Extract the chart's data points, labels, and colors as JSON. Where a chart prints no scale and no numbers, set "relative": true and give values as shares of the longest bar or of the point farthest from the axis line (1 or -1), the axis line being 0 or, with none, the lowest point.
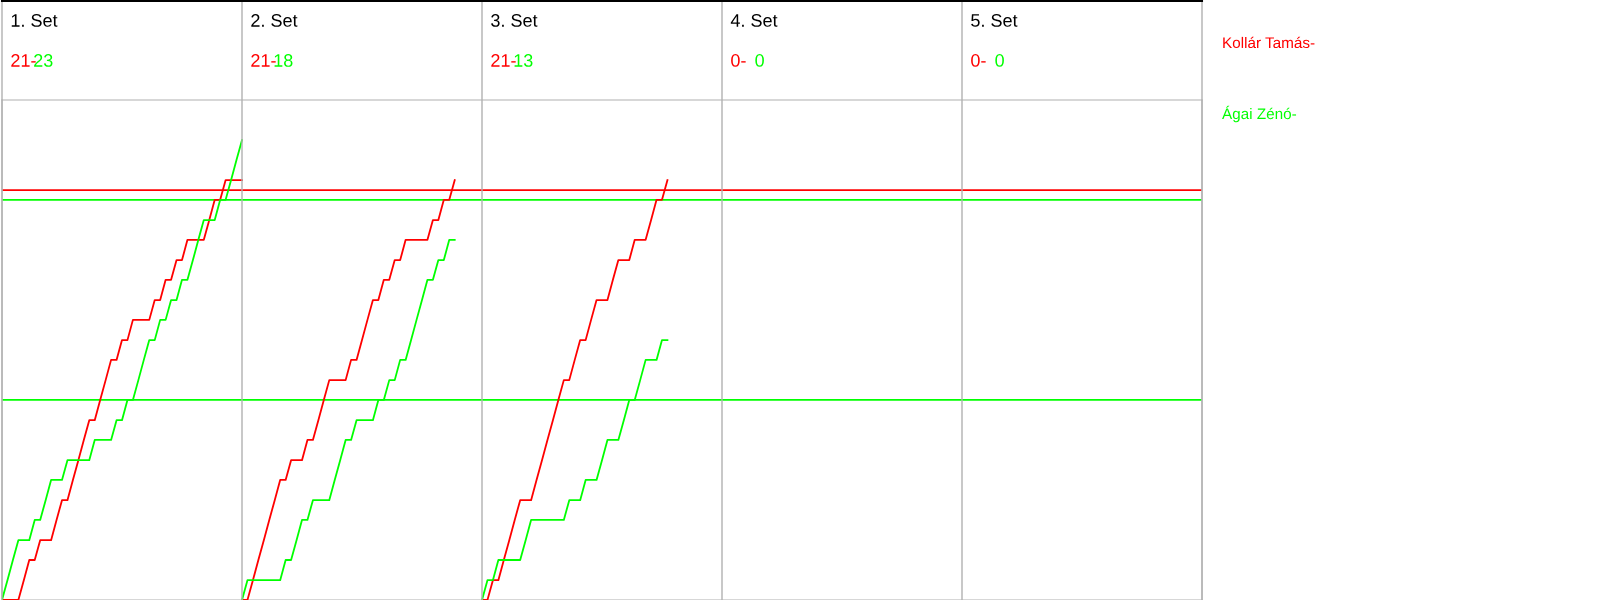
{
  "chart_data": {
    "type": "line",
    "relative": true,
    "marker": "none",
    "line_style": "solid",
    "annotations": [
      "1. Set",
      "21-",
      "23",
      "2. Set",
      "21-",
      "18",
      "3. Set",
      "21-",
      "13",
      "4. Set",
      "0-",
      "0",
      "5. Set",
      "0-",
      "0"
    ],
    "categories": [
      null,
      null,
      null,
      null,
      null,
      null,
      null,
      null,
      null,
      null,
      null,
      null,
      null,
      null,
      null,
      null,
      null,
      null,
      null,
      null,
      null,
      null,
      null,
      null,
      null,
      null,
      null,
      null,
      null,
      null,
      null,
      null,
      null,
      null,
      null,
      null,
      null,
      null,
      null,
      null,
      null,
      null,
      null,
      null,
      null,
      null,
      null,
      null,
      null,
      null,
      null,
      null,
      null,
      null,
      null,
      null,
      null,
      null,
      null,
      null,
      null,
      null,
      null,
      null,
      null,
      null,
      null,
      null,
      null,
      null,
      null,
      null,
      null,
      null,
      null,
      null,
      null,
      null,
      null,
      null,
      null,
      null,
      null,
      null,
      null,
      null,
      null,
      null,
      null,
      null,
      null,
      null,
      null,
      null,
      null,
      null,
      null,
      null,
      null,
      null,
      null,
      null,
      null,
      null,
      null,
      null,
      null,
      null,
      null,
      null,
      null,
      null,
      null,
      null,
      null,
      null,
      null,
      null,
      null,
      null,
      null,
      null,
      null,
      null,
      null,
      null,
      null,
      null,
      null,
      null,
      null,
      null,
      null,
      null,
      null,
      null,
      null,
      null,
      null,
      null,
      null,
      null,
      null,
      null,
      null,
      null,
      null,
      null,
      null,
      null,
      null,
      null,
      null,
      null,
      null,
      null,
      null,
      null,
      null,
      null,
      null,
      null,
      null,
      null,
      null,
      null,
      null,
      null,
      null,
      null,
      null,
      null,
      null,
      null,
      null,
      null,
      null,
      null,
      null,
      null,
      null,
      null,
      null,
      null,
      null,
      null,
      null,
      null,
      null,
      null,
      null,
      null,
      null,
      null,
      null,
      null,
      null,
      null,
      null,
      null,
      null,
      null,
      null,
      null,
      null,
      null,
      null,
      null,
      null,
      null,
      null,
      null,
      null,
      null,
      null,
      null,
      null,
      null,
      null,
      null,
      null
    ],
    "series": [
      {
        "name": "Kollár Tamás-",
        "color": "#ff0000",
        "values": [
          0,
          0,
          0,
          0,
          0.043,
          0.087,
          0.087,
          0.13,
          0.13,
          0.13,
          0.174,
          0.217,
          0.217,
          0.261,
          0.304,
          0.348,
          0.391,
          0.391,
          0.435,
          0.478,
          0.522,
          0.522,
          0.565,
          0.565,
          0.609,
          0.609,
          0.609,
          0.609,
          0.652,
          0.652,
          0.696,
          0.696,
          0.739,
          0.739,
          0.783,
          0.783,
          0.783,
          0.783,
          0.826,
          0.87,
          0.87,
          0.913,
          0.913,
          0.913,
          0.913,
          null,
          null,
          null,
          null,
          null,
          null,
          null,
          null,
          null,
          null,
          null,
          null,
          null,
          null,
          null,
          null,
          null,
          null,
          null,
          null,
          null,
          null,
          null,
          null,
          null,
          null,
          null,
          null,
          null,
          null,
          null,
          null,
          null,
          null,
          null,
          null,
          null,
          null,
          null,
          null,
          null,
          null,
          null,
          null,
          null,
          null,
          null,
          null,
          null,
          null,
          null,
          null,
          null,
          null,
          null,
          null,
          null,
          null,
          null,
          null,
          null,
          null,
          null,
          null,
          null,
          null,
          null,
          null,
          null,
          null,
          null,
          null,
          null,
          null,
          null,
          null,
          null,
          null,
          null,
          null,
          null,
          null,
          null,
          null,
          null,
          null,
          null,
          null,
          null,
          null,
          null,
          null,
          null,
          null,
          null,
          null,
          null,
          null,
          null,
          null,
          null,
          null,
          null,
          null,
          null,
          null,
          null,
          null,
          null,
          null,
          null,
          null,
          null,
          null,
          null,
          null,
          null,
          null,
          null,
          null,
          null,
          null,
          null,
          null,
          null,
          null,
          null,
          null,
          null,
          null,
          null,
          null,
          null,
          null,
          null,
          null,
          null,
          null,
          null,
          null,
          null,
          null,
          null,
          null,
          null,
          null,
          null,
          null,
          null,
          null,
          null,
          null,
          null,
          null,
          null,
          null,
          null,
          null,
          null,
          null,
          null,
          null,
          null,
          null,
          null,
          null,
          null,
          null,
          null,
          null,
          null,
          null,
          null,
          null,
          null,
          null
        ]
      },
      {
        "name": "Ágai Zénó-",
        "color": "#00ff00",
        "values": [
          0,
          0.043,
          0.087,
          0.13,
          0.13,
          0.13,
          0.174,
          0.174,
          0.217,
          0.261,
          0.261,
          0.261,
          0.304,
          0.304,
          0.304,
          0.304,
          0.304,
          0.348,
          0.348,
          0.348,
          0.348,
          0.391,
          0.391,
          0.435,
          0.435,
          0.478,
          0.522,
          0.565,
          0.565,
          0.609,
          0.609,
          0.652,
          0.652,
          0.696,
          0.696,
          0.739,
          0.783,
          0.826,
          0.826,
          0.826,
          0.87,
          0.87,
          0.913,
          0.957,
          1,
          null,
          null,
          null,
          null,
          null,
          null,
          null,
          null,
          null,
          null,
          null,
          null,
          null,
          null,
          null,
          null,
          null,
          null,
          null,
          null,
          null,
          null,
          null,
          null,
          null,
          null,
          null,
          null,
          null,
          null,
          null,
          null,
          null,
          null,
          null,
          null,
          null,
          null,
          null,
          null,
          null,
          null,
          null,
          null,
          null,
          null,
          null,
          null,
          null,
          null,
          null,
          null,
          null,
          null,
          null,
          null,
          null,
          null,
          null,
          null,
          null,
          null,
          null,
          null,
          null,
          null,
          null,
          null,
          null,
          null,
          null,
          null,
          null,
          null,
          null,
          null,
          null,
          null,
          null,
          null,
          null,
          null,
          null,
          null,
          null,
          null,
          null,
          null,
          null,
          null,
          null,
          null,
          null,
          null,
          null,
          null,
          null,
          null,
          null,
          null,
          null,
          null,
          null,
          null,
          null,
          null,
          null,
          null,
          null,
          null,
          null,
          null,
          null,
          null,
          null,
          null,
          null,
          null,
          null,
          null,
          null,
          null,
          null,
          null,
          null,
          null,
          null,
          null,
          null,
          null,
          null,
          null,
          null,
          null,
          null,
          null,
          null,
          null,
          null,
          null,
          null,
          null,
          null,
          null,
          null,
          null,
          null,
          null,
          null,
          null,
          null,
          null,
          null,
          null,
          null,
          null,
          null,
          null,
          null,
          null,
          null,
          null,
          null,
          null,
          null,
          null,
          null,
          null,
          null,
          null,
          null,
          null,
          null,
          null,
          null,
          null
        ]
      },
      {
        "color": "#ff0000",
        "values": [
          null,
          null,
          null,
          null,
          null,
          null,
          null,
          null,
          null,
          null,
          null,
          null,
          null,
          null,
          null,
          null,
          null,
          null,
          null,
          null,
          null,
          null,
          null,
          null,
          null,
          null,
          null,
          null,
          null,
          null,
          null,
          null,
          null,
          null,
          null,
          null,
          null,
          null,
          null,
          null,
          null,
          null,
          null,
          null,
          0,
          0,
          0.043,
          0.087,
          0.13,
          0.174,
          0.217,
          0.261,
          0.261,
          0.304,
          0.304,
          0.304,
          0.348,
          0.348,
          0.391,
          0.435,
          0.478,
          0.478,
          0.478,
          0.478,
          0.522,
          0.522,
          0.565,
          0.609,
          0.652,
          0.652,
          0.696,
          0.696,
          0.739,
          0.739,
          0.783,
          0.783,
          0.783,
          0.783,
          0.783,
          0.826,
          0.826,
          0.87,
          0.87,
          0.913,
          null,
          null,
          null,
          null,
          null,
          null,
          null,
          null,
          null,
          null,
          null,
          null,
          null,
          null,
          null,
          null,
          null,
          null,
          null,
          null,
          null,
          null,
          null,
          null,
          null,
          null,
          null,
          null,
          null,
          null,
          null,
          null,
          null,
          null,
          null,
          null,
          null,
          null,
          null,
          null,
          null,
          null,
          null,
          null,
          null,
          null,
          null,
          null,
          null,
          null,
          null,
          null,
          null,
          null,
          null,
          null,
          null,
          null,
          null,
          null,
          null,
          null,
          null,
          null,
          null,
          null,
          null,
          null,
          null,
          null,
          null,
          null,
          null,
          null,
          null,
          null,
          null,
          null,
          null,
          null,
          null,
          null,
          null,
          null,
          null,
          null,
          null,
          null,
          null,
          null,
          null,
          null,
          null,
          null,
          null,
          null,
          null,
          null,
          null,
          null,
          null,
          null,
          null,
          null,
          null,
          null,
          null,
          null,
          null,
          null,
          null,
          null,
          null,
          null,
          null,
          null,
          null,
          null,
          null,
          null,
          null,
          null,
          null,
          null,
          null,
          null,
          null,
          null,
          null,
          null,
          null,
          null,
          null,
          null,
          null,
          null,
          null
        ]
      },
      {
        "color": "#00ff00",
        "values": [
          null,
          null,
          null,
          null,
          null,
          null,
          null,
          null,
          null,
          null,
          null,
          null,
          null,
          null,
          null,
          null,
          null,
          null,
          null,
          null,
          null,
          null,
          null,
          null,
          null,
          null,
          null,
          null,
          null,
          null,
          null,
          null,
          null,
          null,
          null,
          null,
          null,
          null,
          null,
          null,
          null,
          null,
          null,
          null,
          0,
          0.043,
          0.043,
          0.043,
          0.043,
          0.043,
          0.043,
          0.043,
          0.087,
          0.087,
          0.13,
          0.174,
          0.174,
          0.217,
          0.217,
          0.217,
          0.217,
          0.261,
          0.304,
          0.348,
          0.348,
          0.391,
          0.391,
          0.391,
          0.391,
          0.435,
          0.435,
          0.478,
          0.478,
          0.522,
          0.522,
          0.565,
          0.609,
          0.652,
          0.696,
          0.696,
          0.739,
          0.739,
          0.783,
          0.783,
          null,
          null,
          null,
          null,
          null,
          null,
          null,
          null,
          null,
          null,
          null,
          null,
          null,
          null,
          null,
          null,
          null,
          null,
          null,
          null,
          null,
          null,
          null,
          null,
          null,
          null,
          null,
          null,
          null,
          null,
          null,
          null,
          null,
          null,
          null,
          null,
          null,
          null,
          null,
          null,
          null,
          null,
          null,
          null,
          null,
          null,
          null,
          null,
          null,
          null,
          null,
          null,
          null,
          null,
          null,
          null,
          null,
          null,
          null,
          null,
          null,
          null,
          null,
          null,
          null,
          null,
          null,
          null,
          null,
          null,
          null,
          null,
          null,
          null,
          null,
          null,
          null,
          null,
          null,
          null,
          null,
          null,
          null,
          null,
          null,
          null,
          null,
          null,
          null,
          null,
          null,
          null,
          null,
          null,
          null,
          null,
          null,
          null,
          null,
          null,
          null,
          null,
          null,
          null,
          null,
          null,
          null,
          null,
          null,
          null,
          null,
          null,
          null,
          null,
          null,
          null,
          null,
          null,
          null,
          null,
          null,
          null,
          null,
          null,
          null,
          null,
          null,
          null,
          null,
          null,
          null,
          null,
          null,
          null,
          null,
          null,
          null
        ]
      },
      {
        "color": "#ff0000",
        "values": [
          null,
          null,
          null,
          null,
          null,
          null,
          null,
          null,
          null,
          null,
          null,
          null,
          null,
          null,
          null,
          null,
          null,
          null,
          null,
          null,
          null,
          null,
          null,
          null,
          null,
          null,
          null,
          null,
          null,
          null,
          null,
          null,
          null,
          null,
          null,
          null,
          null,
          null,
          null,
          null,
          null,
          null,
          null,
          null,
          null,
          null,
          null,
          null,
          null,
          null,
          null,
          null,
          null,
          null,
          null,
          null,
          null,
          null,
          null,
          null,
          null,
          null,
          null,
          null,
          null,
          null,
          null,
          null,
          null,
          null,
          null,
          null,
          null,
          null,
          null,
          null,
          null,
          null,
          null,
          null,
          null,
          null,
          null,
          null,
          null,
          null,
          null,
          null,
          0,
          0,
          0.043,
          0.043,
          0.087,
          0.13,
          0.174,
          0.217,
          0.217,
          0.217,
          0.261,
          0.304,
          0.348,
          0.391,
          0.435,
          0.478,
          0.478,
          0.522,
          0.565,
          0.565,
          0.609,
          0.652,
          0.652,
          0.652,
          0.696,
          0.739,
          0.739,
          0.739,
          0.783,
          0.783,
          0.783,
          0.826,
          0.87,
          0.87,
          0.913,
          null,
          null,
          null,
          null,
          null,
          null,
          null,
          null,
          null,
          null,
          null,
          null,
          null,
          null,
          null,
          null,
          null,
          null,
          null,
          null,
          null,
          null,
          null,
          null,
          null,
          null,
          null,
          null,
          null,
          null,
          null,
          null,
          null,
          null,
          null,
          null,
          null,
          null,
          null,
          null,
          null,
          null,
          null,
          null,
          null,
          null,
          null,
          null,
          null,
          null,
          null,
          null,
          null,
          null,
          null,
          null,
          null,
          null,
          null,
          null,
          null,
          null,
          null,
          null,
          null,
          null,
          null,
          null,
          null,
          null,
          null,
          null,
          null,
          null,
          null,
          null,
          null,
          null,
          null,
          null,
          null,
          null,
          null,
          null,
          null,
          null,
          null,
          null,
          null,
          null,
          null,
          null,
          null,
          null,
          null,
          null,
          null,
          null
        ]
      },
      {
        "color": "#00ff00",
        "values": [
          null,
          null,
          null,
          null,
          null,
          null,
          null,
          null,
          null,
          null,
          null,
          null,
          null,
          null,
          null,
          null,
          null,
          null,
          null,
          null,
          null,
          null,
          null,
          null,
          null,
          null,
          null,
          null,
          null,
          null,
          null,
          null,
          null,
          null,
          null,
          null,
          null,
          null,
          null,
          null,
          null,
          null,
          null,
          null,
          null,
          null,
          null,
          null,
          null,
          null,
          null,
          null,
          null,
          null,
          null,
          null,
          null,
          null,
          null,
          null,
          null,
          null,
          null,
          null,
          null,
          null,
          null,
          null,
          null,
          null,
          null,
          null,
          null,
          null,
          null,
          null,
          null,
          null,
          null,
          null,
          null,
          null,
          null,
          null,
          null,
          null,
          null,
          null,
          0,
          0.043,
          0.043,
          0.087,
          0.087,
          0.087,
          0.087,
          0.087,
          0.13,
          0.174,
          0.174,
          0.174,
          0.174,
          0.174,
          0.174,
          0.174,
          0.217,
          0.217,
          0.217,
          0.261,
          0.261,
          0.261,
          0.304,
          0.348,
          0.348,
          0.348,
          0.391,
          0.435,
          0.435,
          0.478,
          0.522,
          0.522,
          0.522,
          0.565,
          0.565,
          null,
          null,
          null,
          null,
          null,
          null,
          null,
          null,
          null,
          null,
          null,
          null,
          null,
          null,
          null,
          null,
          null,
          null,
          null,
          null,
          null,
          null,
          null,
          null,
          null,
          null,
          null,
          null,
          null,
          null,
          null,
          null,
          null,
          null,
          null,
          null,
          null,
          null,
          null,
          null,
          null,
          null,
          null,
          null,
          null,
          null,
          null,
          null,
          null,
          null,
          null,
          null,
          null,
          null,
          null,
          null,
          null,
          null,
          null,
          null,
          null,
          null,
          null,
          null,
          null,
          null,
          null,
          null,
          null,
          null,
          null,
          null,
          null,
          null,
          null,
          null,
          null,
          null,
          null,
          null,
          null,
          null,
          null,
          null,
          null,
          null,
          null,
          null,
          null,
          null,
          null,
          null,
          null,
          null,
          null,
          null,
          null,
          null
        ]
      }
    ],
    "ref_lines": [
      {
        "axis": "y",
        "value": 0.891,
        "color": "#ff0000"
      },
      {
        "axis": "y",
        "value": 0.87,
        "color": "#00ff00"
      },
      {
        "axis": "y",
        "value": 0.435,
        "color": "#00ff00"
      }
    ]
  }
}
